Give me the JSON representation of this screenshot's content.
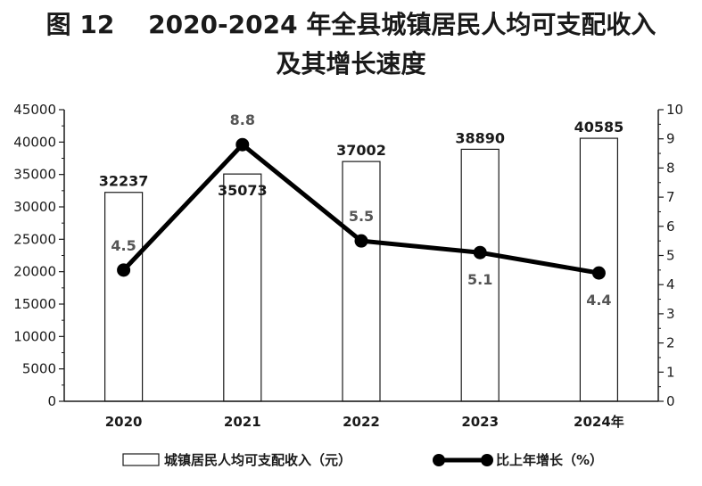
{
  "title_line1": "图 12　 2020-2024 年全县城镇居民人均可支配收入",
  "title_line2": "及其增长速度",
  "chart_data": {
    "type": "bar+line",
    "categories": [
      "2020",
      "2021",
      "2022",
      "2023",
      "2024年"
    ],
    "series": [
      {
        "name": "城镇居民人均可支配收入（元）",
        "type": "bar",
        "axis": "left",
        "values": [
          32237,
          35073,
          37002,
          38890,
          40585
        ]
      },
      {
        "name": "比上年增长（%）",
        "type": "line",
        "axis": "right",
        "values": [
          4.5,
          8.8,
          5.5,
          5.1,
          4.4
        ]
      }
    ],
    "y_left": {
      "min": 0,
      "max": 45000,
      "ticks": [
        0,
        5000,
        10000,
        15000,
        20000,
        25000,
        30000,
        35000,
        40000,
        45000
      ]
    },
    "y_right": {
      "min": 0,
      "max": 10,
      "ticks": [
        0,
        1,
        2,
        3,
        4,
        5,
        6,
        7,
        8,
        9,
        10
      ]
    },
    "bar_labels": [
      "32237",
      "35073",
      "37002",
      "38890",
      "40585"
    ],
    "point_labels": [
      "4.5",
      "8.8",
      "5.5",
      "5.1",
      "4.4"
    ],
    "legend_position": "bottom",
    "colors": {
      "bar_fill": "#ffffff",
      "bar_stroke": "#1a1a1a",
      "line": "#000000",
      "label_gray": "#555555"
    }
  }
}
